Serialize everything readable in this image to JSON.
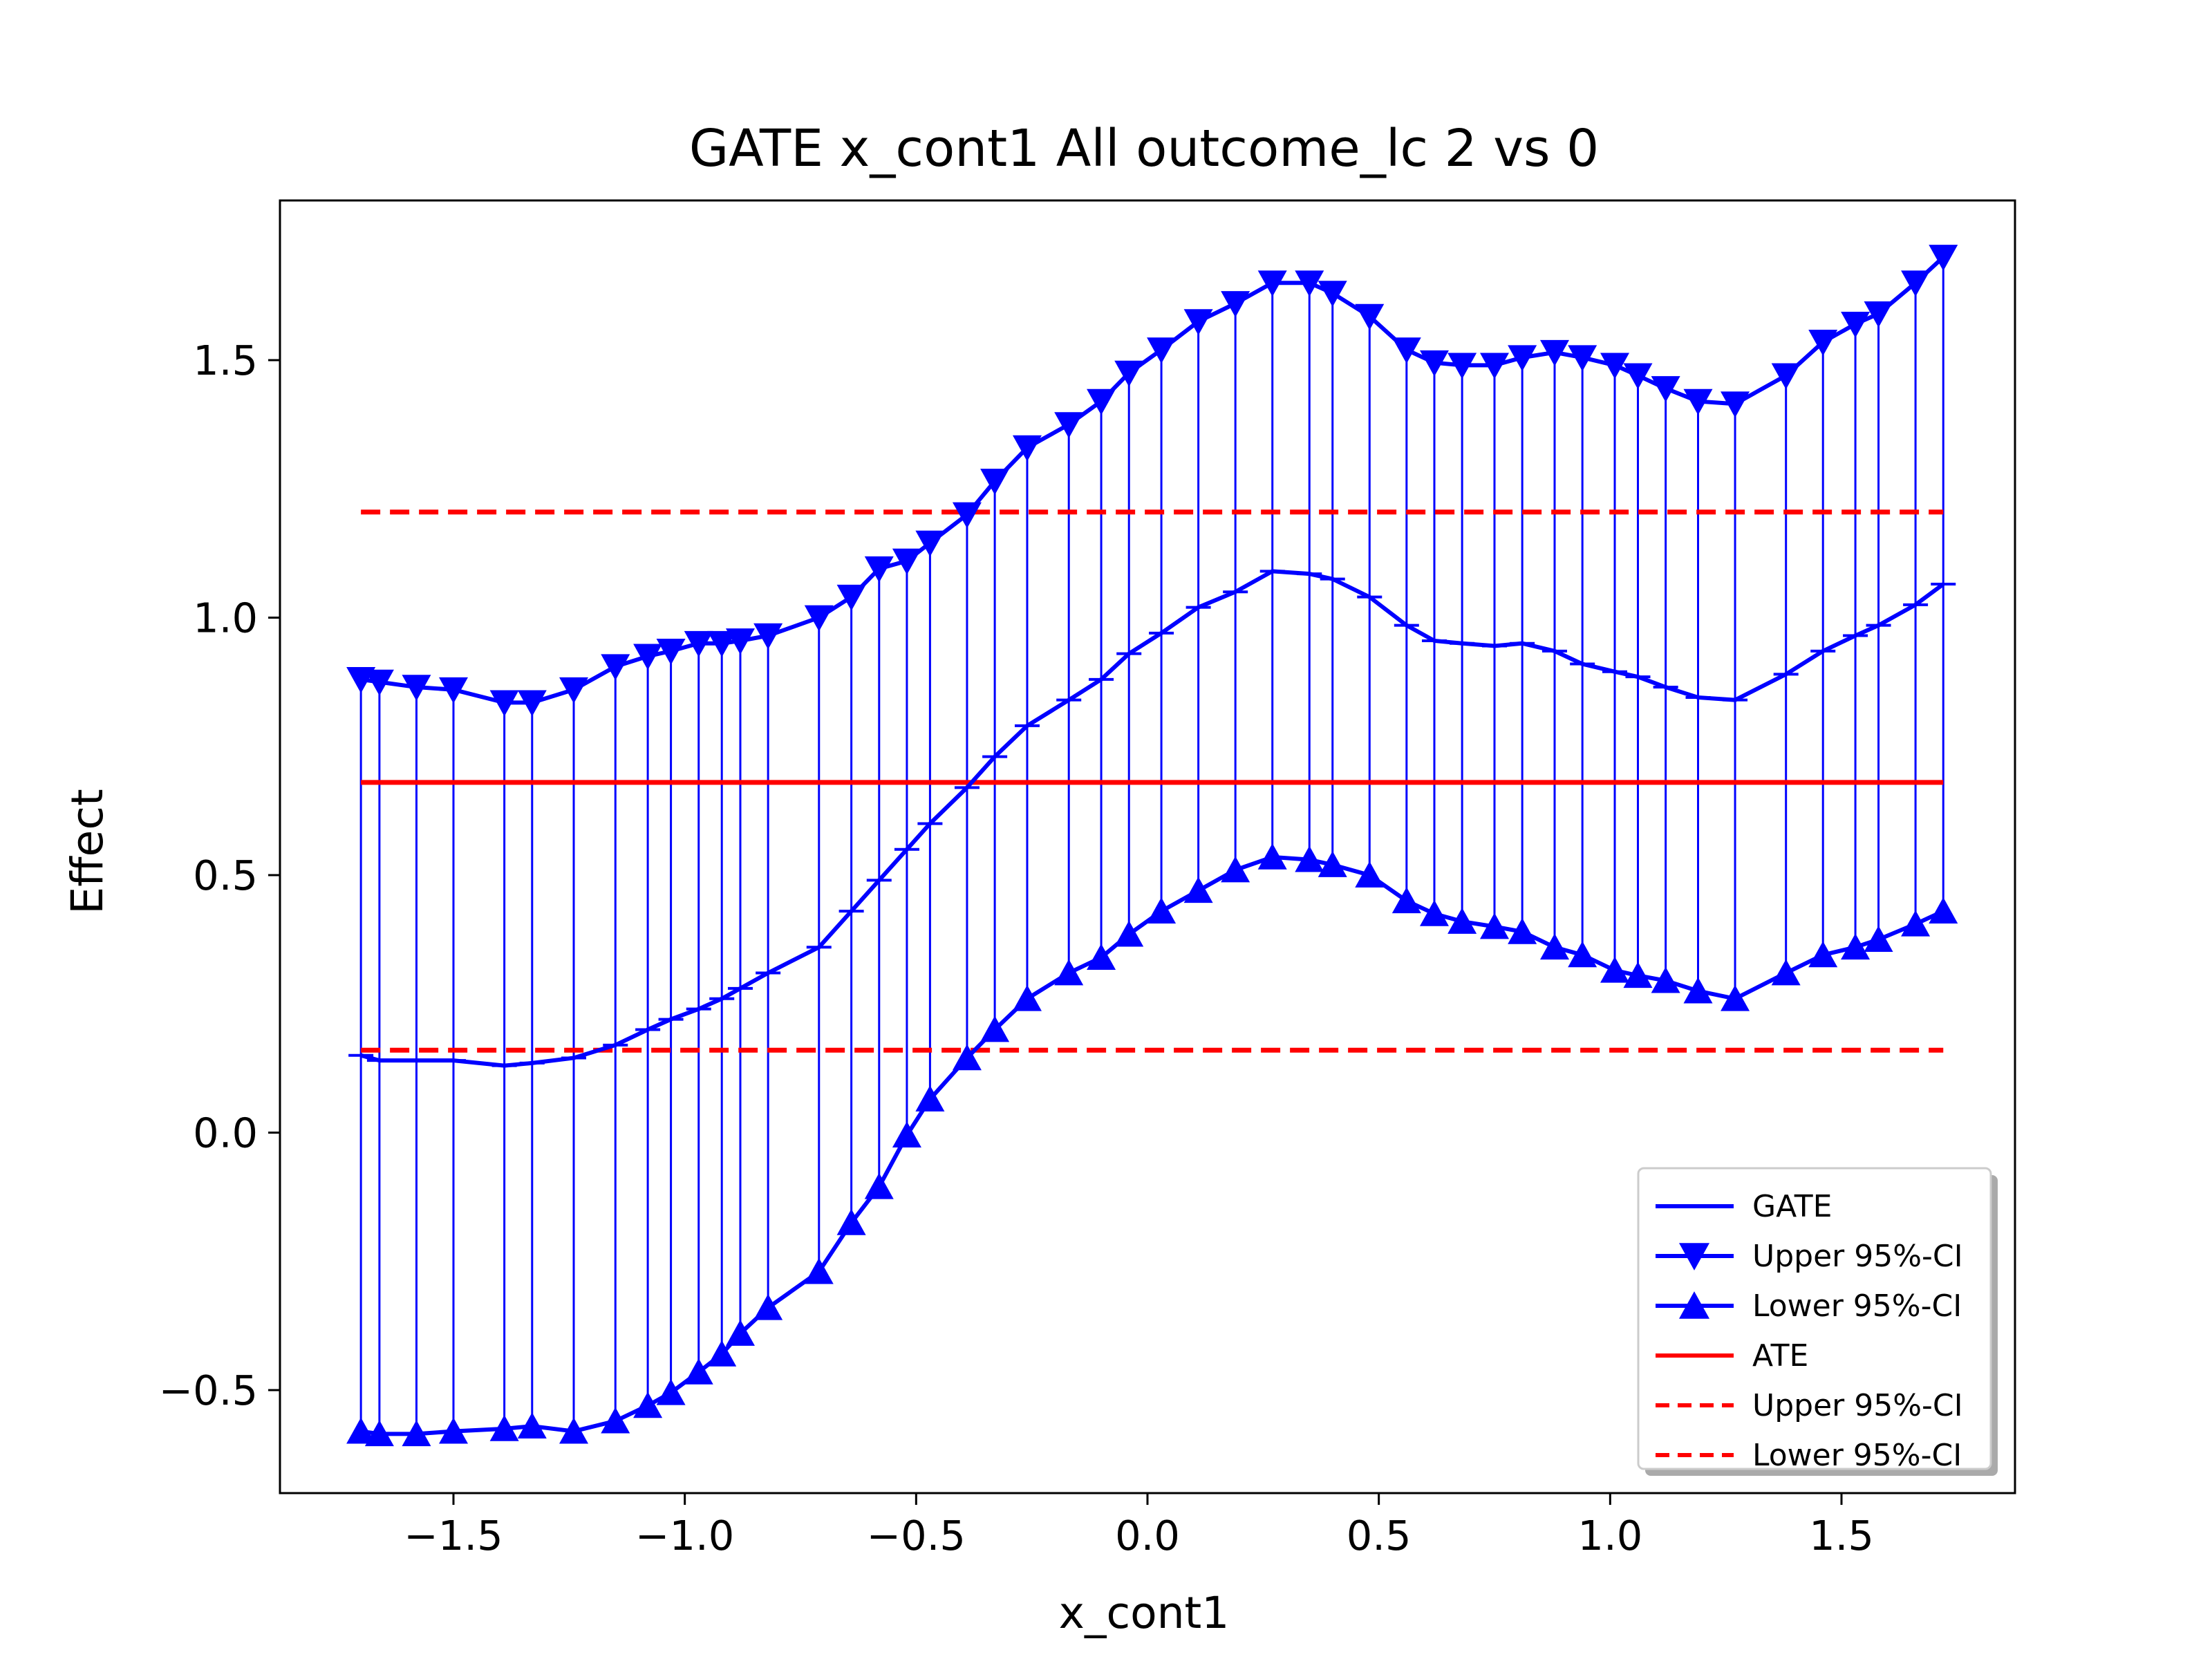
{
  "chart_data": {
    "type": "line",
    "title": "GATE x_cont1 All outcome_lc  2 vs 0",
    "xlabel": "x_cont1",
    "ylabel": "Effect",
    "xlim": [
      -1.875,
      1.875
    ],
    "ylim": [
      -0.7,
      1.81
    ],
    "xticks": [
      -1.5,
      -1.0,
      -0.5,
      0.0,
      0.5,
      1.0,
      1.5
    ],
    "xtick_labels": [
      "−1.5",
      "−1.0",
      "−0.5",
      "0.0",
      "0.5",
      "1.0",
      "1.5"
    ],
    "yticks": [
      -0.5,
      0.0,
      0.5,
      1.0,
      1.5
    ],
    "ytick_labels": [
      "−0.5",
      "0.0",
      "0.5",
      "1.0",
      "1.5"
    ],
    "grid": false,
    "legend_position": "lower-right",
    "colors": {
      "gate": "#0000ff",
      "ate": "#ff0000"
    },
    "x": [
      -1.7,
      -1.66,
      -1.58,
      -1.5,
      -1.39,
      -1.33,
      -1.24,
      -1.15,
      -1.08,
      -1.03,
      -0.97,
      -0.92,
      -0.88,
      -0.82,
      -0.71,
      -0.64,
      -0.58,
      -0.52,
      -0.47,
      -0.39,
      -0.33,
      -0.26,
      -0.17,
      -0.1,
      -0.04,
      0.03,
      0.11,
      0.19,
      0.27,
      0.35,
      0.4,
      0.48,
      0.56,
      0.62,
      0.68,
      0.75,
      0.81,
      0.88,
      0.94,
      1.01,
      1.06,
      1.12,
      1.19,
      1.27,
      1.38,
      1.46,
      1.53,
      1.58,
      1.66,
      1.72
    ],
    "series": [
      {
        "name": "GATE",
        "values": [
          0.15,
          0.14,
          0.14,
          0.14,
          0.13,
          0.135,
          0.145,
          0.17,
          0.2,
          0.22,
          0.24,
          0.26,
          0.28,
          0.31,
          0.36,
          0.43,
          0.49,
          0.55,
          0.6,
          0.67,
          0.73,
          0.79,
          0.84,
          0.88,
          0.93,
          0.97,
          1.02,
          1.05,
          1.09,
          1.085,
          1.075,
          1.04,
          0.985,
          0.955,
          0.95,
          0.945,
          0.95,
          0.935,
          0.91,
          0.895,
          0.885,
          0.865,
          0.845,
          0.84,
          0.89,
          0.935,
          0.965,
          0.985,
          1.025,
          1.065
        ]
      },
      {
        "name": "Upper 95%-CI",
        "values": [
          0.88,
          0.875,
          0.865,
          0.86,
          0.835,
          0.835,
          0.86,
          0.905,
          0.925,
          0.935,
          0.95,
          0.95,
          0.955,
          0.965,
          1.0,
          1.04,
          1.095,
          1.11,
          1.145,
          1.2,
          1.265,
          1.33,
          1.375,
          1.42,
          1.475,
          1.52,
          1.575,
          1.61,
          1.65,
          1.65,
          1.63,
          1.585,
          1.52,
          1.495,
          1.49,
          1.49,
          1.505,
          1.515,
          1.505,
          1.49,
          1.47,
          1.445,
          1.42,
          1.415,
          1.47,
          1.535,
          1.57,
          1.59,
          1.65,
          1.7
        ]
      },
      {
        "name": "Lower 95%-CI",
        "values": [
          -0.58,
          -0.585,
          -0.585,
          -0.58,
          -0.575,
          -0.57,
          -0.58,
          -0.56,
          -0.53,
          -0.505,
          -0.465,
          -0.43,
          -0.39,
          -0.34,
          -0.27,
          -0.175,
          -0.105,
          -0.005,
          0.065,
          0.145,
          0.2,
          0.26,
          0.31,
          0.34,
          0.385,
          0.43,
          0.47,
          0.51,
          0.535,
          0.53,
          0.52,
          0.5,
          0.45,
          0.425,
          0.41,
          0.4,
          0.39,
          0.36,
          0.345,
          0.315,
          0.305,
          0.295,
          0.275,
          0.26,
          0.31,
          0.345,
          0.36,
          0.375,
          0.405,
          0.43
        ]
      }
    ],
    "ate": {
      "name": "ATE",
      "value": 0.68,
      "upper": 1.205,
      "lower": 0.16,
      "upper_name": "Upper 95%-CI",
      "lower_name": "Lower 95%-CI",
      "x_range": [
        -1.7,
        1.72
      ]
    },
    "legend": [
      "GATE",
      "Upper 95%-CI",
      "Lower 95%-CI",
      "ATE",
      "Upper 95%-CI",
      "Lower 95%-CI"
    ]
  }
}
